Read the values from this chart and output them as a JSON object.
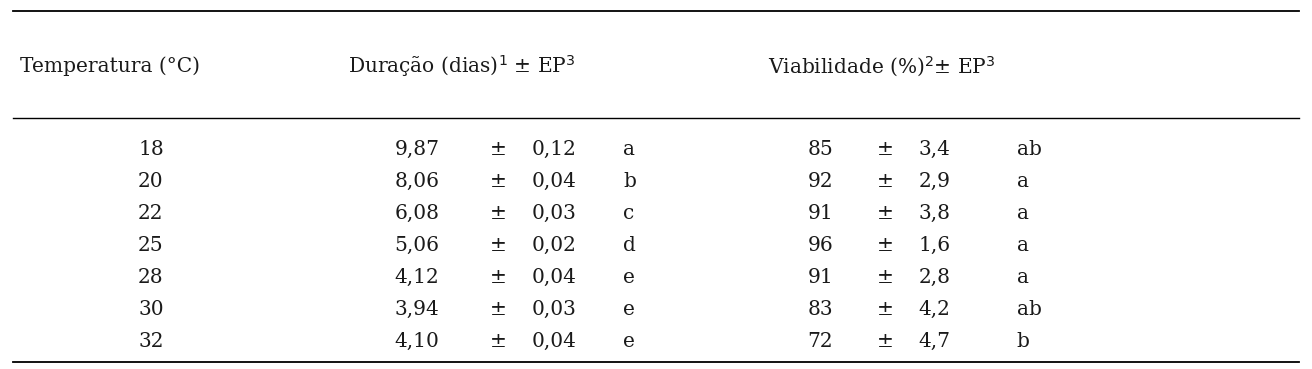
{
  "temperatures": [
    "18",
    "20",
    "22",
    "25",
    "28",
    "30",
    "32"
  ],
  "duracao_val": [
    "9,87",
    "8,06",
    "6,08",
    "5,06",
    "4,12",
    "3,94",
    "4,10"
  ],
  "duracao_ep": [
    "0,12",
    "0,04",
    "0,03",
    "0,02",
    "0,04",
    "0,03",
    "0,04"
  ],
  "duracao_letter": [
    "a",
    "b",
    "c",
    "d",
    "e",
    "e",
    "e"
  ],
  "viab_val": [
    "85",
    "92",
    "91",
    "96",
    "91",
    "83",
    "72"
  ],
  "viab_ep": [
    "3,4",
    "2,9",
    "3,8",
    "1,6",
    "2,8",
    "4,2",
    "4,7"
  ],
  "viab_letter": [
    "ab",
    "a",
    "a",
    "a",
    "a",
    "ab",
    "b"
  ],
  "bg_color": "#ffffff",
  "text_color": "#1a1a1a",
  "font_size": 14.5,
  "header_font_size": 14.5,
  "col1_header": "Temperatura (°C)",
  "col2_header_main": "Duração (dias)",
  "col2_header_sup1": "1",
  "col2_header_pm": " ± EP",
  "col2_header_sup3": "3",
  "col3_header_main": "Viabilidade (%)",
  "col3_header_sup2": "2",
  "col3_header_pm": "± EP",
  "col3_header_sup3b": "3"
}
